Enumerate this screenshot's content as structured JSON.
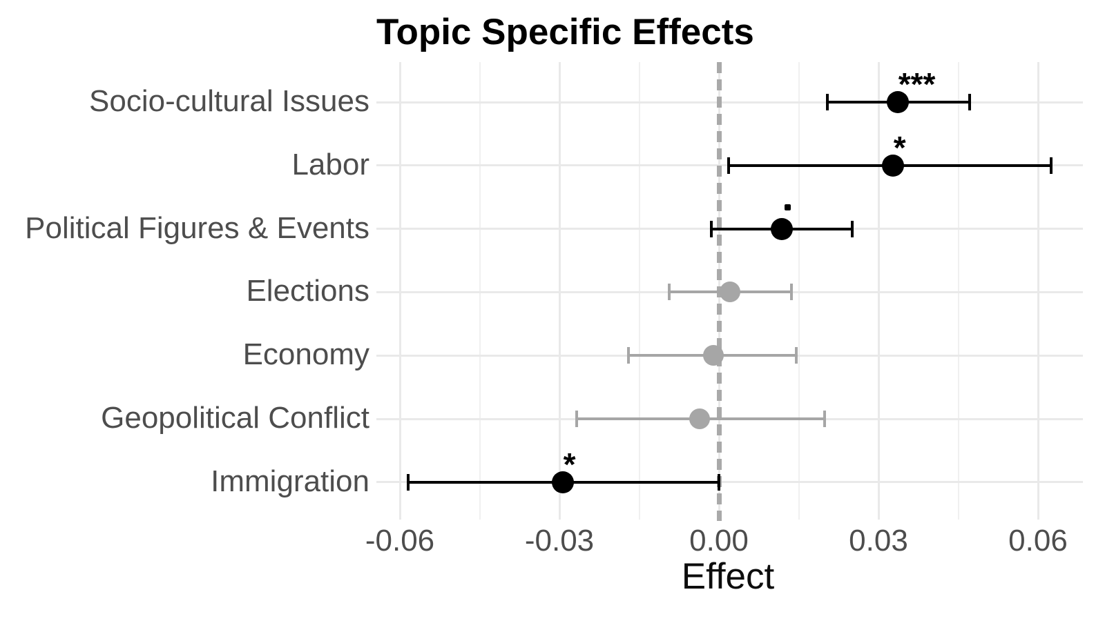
{
  "chart_data": {
    "type": "scatter",
    "subtype": "dot-whisker coefficient plot with horizontal error bars",
    "title": "Topic Specific Effects",
    "xlabel": "Effect",
    "ylabel": "",
    "xlim": [
      -0.0645,
      0.0685
    ],
    "xticks": [
      -0.06,
      -0.03,
      0,
      0.03,
      0.06
    ],
    "xtick_labels": [
      "-0.06",
      "-0.03",
      "0.00",
      "0.03",
      "0.06"
    ],
    "xticks_minor": [
      -0.045,
      -0.015,
      0.015,
      0.045
    ],
    "grid": "on",
    "legend": "none",
    "zero_reference_line": {
      "x": 0,
      "style": "dashed"
    },
    "points": [
      {
        "label": "Socio-cultural Issues",
        "effect": 0.0336,
        "ci_low": 0.0204,
        "ci_high": 0.0471,
        "significance": "***",
        "significant": true
      },
      {
        "label": "Labor",
        "effect": 0.0327,
        "ci_low": 0.0018,
        "ci_high": 0.0625,
        "significance": "*",
        "significant": true
      },
      {
        "label": "Political Figures & Events",
        "effect": 0.0118,
        "ci_low": -0.0014,
        "ci_high": 0.025,
        "significance": ".",
        "significant": true
      },
      {
        "label": "Elections",
        "effect": 0.0021,
        "ci_low": -0.0094,
        "ci_high": 0.0137,
        "significance": "",
        "significant": false
      },
      {
        "label": "Economy",
        "effect": -0.0011,
        "ci_low": -0.017,
        "ci_high": 0.0145,
        "significance": "",
        "significant": false
      },
      {
        "label": "Geopolitical Conflict",
        "effect": -0.0036,
        "ci_low": -0.0268,
        "ci_high": 0.0199,
        "significance": "",
        "significant": false
      },
      {
        "label": "Immigration",
        "effect": -0.0294,
        "ci_low": -0.0584,
        "ci_high": 0.0,
        "significance": "*",
        "significant": true
      }
    ],
    "colors": {
      "significant": "#000000",
      "nonsignificant": "#a6a6a6",
      "zero_line": "#a9a9a9",
      "gridline_major": "#e9e9e9",
      "gridline_minor": "#f0f0f0",
      "axis_text": "#4d4d4d",
      "title_text": "#000000"
    }
  }
}
